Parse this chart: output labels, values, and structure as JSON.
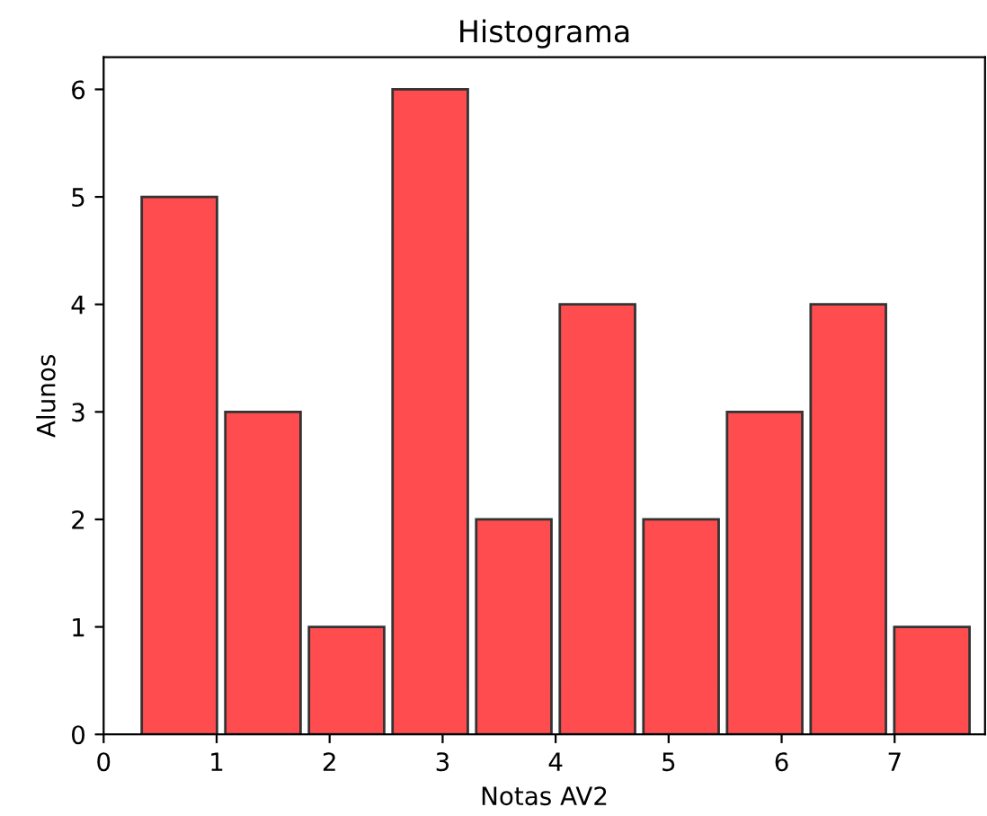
{
  "chart_data": {
    "type": "histogram",
    "title": "Histograma",
    "xlabel": "Notas AV2",
    "ylabel": "Alunos",
    "bins": [
      0.3,
      1.04,
      1.78,
      2.52,
      3.26,
      4.0,
      4.74,
      5.48,
      6.22,
      6.96,
      7.7
    ],
    "values": [
      5,
      3,
      1,
      6,
      2,
      4,
      2,
      3,
      4,
      1
    ],
    "color": "#ff4c4f",
    "xlim": [
      0,
      7.8
    ],
    "xticks": [
      0,
      1,
      2,
      3,
      4,
      5,
      6,
      7
    ],
    "ylim": [
      0,
      6.3
    ],
    "yticks": [
      0,
      1,
      2,
      3,
      4,
      5,
      6
    ],
    "grid": false
  }
}
